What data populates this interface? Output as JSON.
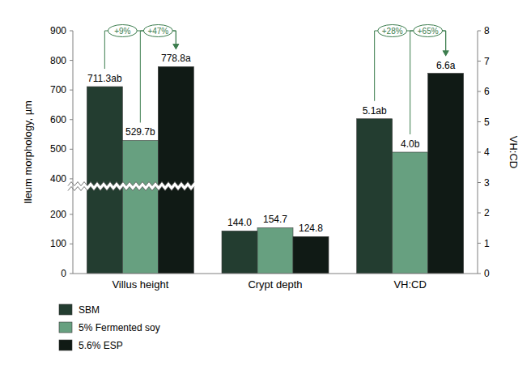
{
  "chart_data": {
    "type": "bar",
    "categories": [
      "Villus height",
      "Crypt depth",
      "VH:CD"
    ],
    "ylabel": "Ileum morphology, µm",
    "y2label": "VH:CD",
    "ylim": [
      0,
      900
    ],
    "yticks": [
      0,
      100,
      200,
      400,
      500,
      600,
      700,
      800,
      900
    ],
    "ybreak": [
      295,
      375
    ],
    "y2lim": [
      0,
      8
    ],
    "y2ticks": [
      0,
      1,
      2,
      3,
      4,
      5,
      6,
      7,
      8
    ],
    "data_labels": true,
    "legend": "bottom-left",
    "series": [
      {
        "name": "SBM",
        "color": "#233d30",
        "values": [
          711.3,
          144.0,
          null
        ],
        "value_labels": [
          "711.3ab",
          "144.0",
          null
        ]
      },
      {
        "name": "5% Fermented soy",
        "color": "#67a080",
        "values": [
          529.7,
          154.7,
          null
        ],
        "value_labels": [
          "529.7b",
          "154.7",
          null
        ]
      },
      {
        "name": "5.6% ESP",
        "color": "#101a15",
        "values": [
          778.8,
          124.8,
          null
        ],
        "value_labels": [
          "778.8a",
          "124.8",
          null
        ]
      },
      {
        "name": "SBM",
        "color": "#233d30",
        "axis": "y2",
        "values": [
          null,
          null,
          5.1
        ],
        "value_labels": [
          null,
          null,
          "5.1ab"
        ]
      },
      {
        "name": "5% Fermented soy",
        "color": "#67a080",
        "axis": "y2",
        "values": [
          null,
          null,
          4.0
        ],
        "value_labels": [
          null,
          null,
          "4.0b"
        ]
      },
      {
        "name": "5.6% ESP",
        "color": "#101a15",
        "axis": "y2",
        "values": [
          null,
          null,
          6.6
        ],
        "value_labels": [
          null,
          null,
          "6.6a"
        ]
      }
    ],
    "annotations": [
      {
        "text": "+9%",
        "category": "Villus height",
        "between": [
          "SBM",
          "5.6% ESP"
        ]
      },
      {
        "text": "+47%",
        "category": "Villus height",
        "between": [
          "5% Fermented soy",
          "5.6% ESP"
        ]
      },
      {
        "text": "+28%",
        "category": "VH:CD",
        "between": [
          "SBM",
          "5.6% ESP"
        ]
      },
      {
        "text": "+65%",
        "category": "VH:CD",
        "between": [
          "5% Fermented soy",
          "5.6% ESP"
        ]
      }
    ]
  }
}
